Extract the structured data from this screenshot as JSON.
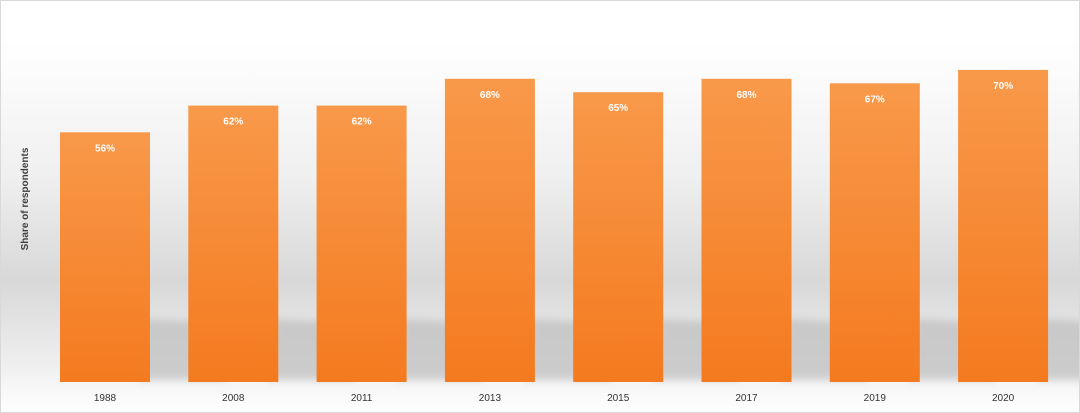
{
  "chart_data": {
    "type": "bar",
    "categories": [
      "1988",
      "2008",
      "2011",
      "2013",
      "2015",
      "2017",
      "2019",
      "2020"
    ],
    "values": [
      56,
      62,
      62,
      68,
      65,
      68,
      67,
      70
    ],
    "value_labels": [
      "56%",
      "62%",
      "62%",
      "68%",
      "65%",
      "68%",
      "67%",
      "70%"
    ],
    "title": "",
    "xlabel": "",
    "ylabel": "Share of respondents",
    "ylim": [
      0,
      72
    ],
    "grid": false,
    "legend": "none",
    "colors": {
      "bar_top": "#f8994a",
      "bar_bottom": "#f47a1f",
      "shadow": "#bdbdbd"
    }
  }
}
